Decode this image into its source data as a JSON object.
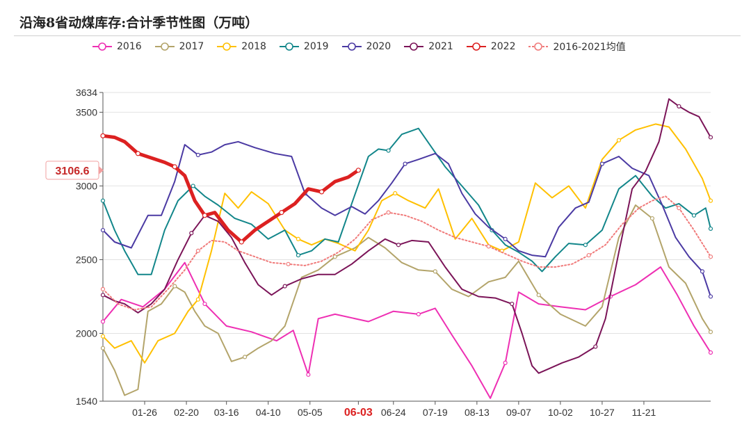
{
  "title": "沿海8省动煤库存:合计季节性图（万吨）",
  "chart_data": {
    "type": "line",
    "title": "沿海8省动煤库存:合计季节性图（万吨）",
    "xlabel": "",
    "ylabel": "",
    "ylim": [
      1540,
      3634
    ],
    "y_ticks": [
      1540,
      2000,
      2500,
      3000,
      3500,
      3634
    ],
    "x_ticks": [
      "01-26",
      "02-20",
      "03-16",
      "04-10",
      "05-05",
      "06-03",
      "06-24",
      "07-19",
      "08-13",
      "09-07",
      "10-02",
      "10-27",
      "11-21"
    ],
    "x_tick_days": [
      26,
      51,
      75,
      100,
      125,
      154,
      175,
      200,
      225,
      250,
      275,
      300,
      325
    ],
    "highlight_label": "06-03",
    "current_value_label": "3106.6",
    "current_value": 3106.6,
    "series": [
      {
        "name": "2016",
        "color": "#ee2fb3",
        "days": [
          1,
          12,
          25,
          38,
          50,
          62,
          75,
          90,
          105,
          115,
          124,
          130,
          140,
          160,
          175,
          190,
          200,
          210,
          222,
          233,
          242,
          250,
          262,
          275,
          290,
          305,
          320,
          335,
          345,
          355,
          365
        ],
        "values": [
          2080,
          2230,
          2180,
          2300,
          2480,
          2200,
          2050,
          2010,
          1950,
          2020,
          1720,
          2100,
          2130,
          2080,
          2150,
          2130,
          2170,
          1990,
          1780,
          1560,
          1800,
          2280,
          2200,
          2180,
          2160,
          2250,
          2330,
          2450,
          2260,
          2050,
          1870
        ]
      },
      {
        "name": "2017",
        "color": "#b3a46a",
        "days": [
          1,
          8,
          14,
          22,
          28,
          36,
          44,
          50,
          56,
          62,
          70,
          78,
          86,
          94,
          102,
          110,
          120,
          130,
          140,
          152,
          160,
          170,
          180,
          190,
          200,
          210,
          220,
          232,
          242,
          250,
          262,
          275,
          290,
          300,
          310,
          320,
          330,
          340,
          350,
          360,
          365
        ],
        "values": [
          1900,
          1750,
          1580,
          1620,
          2150,
          2200,
          2320,
          2280,
          2150,
          2050,
          2000,
          1810,
          1840,
          1900,
          1950,
          2050,
          2380,
          2430,
          2520,
          2580,
          2650,
          2580,
          2480,
          2430,
          2420,
          2300,
          2250,
          2350,
          2380,
          2490,
          2260,
          2130,
          2050,
          2180,
          2650,
          2870,
          2780,
          2450,
          2340,
          2100,
          2010
        ]
      },
      {
        "name": "2018",
        "color": "#ffc000",
        "days": [
          1,
          8,
          18,
          26,
          34,
          44,
          52,
          58,
          66,
          74,
          82,
          90,
          100,
          110,
          118,
          126,
          134,
          142,
          152,
          160,
          168,
          176,
          184,
          194,
          202,
          212,
          222,
          232,
          240,
          250,
          260,
          270,
          280,
          290,
          300,
          310,
          320,
          332,
          340,
          350,
          360,
          365
        ],
        "values": [
          1980,
          1900,
          1950,
          1800,
          1950,
          2000,
          2150,
          2230,
          2560,
          2950,
          2850,
          2960,
          2880,
          2700,
          2640,
          2600,
          2640,
          2610,
          2560,
          2700,
          2900,
          2950,
          2900,
          2850,
          2980,
          2640,
          2780,
          2600,
          2560,
          2620,
          3020,
          2920,
          3000,
          2850,
          3180,
          3310,
          3380,
          3420,
          3400,
          3250,
          3050,
          2900
        ]
      },
      {
        "name": "2019",
        "color": "#12868a",
        "days": [
          1,
          8,
          14,
          22,
          30,
          38,
          46,
          55,
          62,
          70,
          80,
          90,
          100,
          110,
          118,
          126,
          134,
          142,
          150,
          160,
          166,
          172,
          180,
          190,
          198,
          206,
          216,
          226,
          234,
          242,
          250,
          258,
          264,
          272,
          280,
          290,
          300,
          310,
          320,
          330,
          338,
          346,
          355,
          362,
          365
        ],
        "values": [
          2900,
          2700,
          2560,
          2400,
          2400,
          2700,
          2900,
          3000,
          2930,
          2870,
          2780,
          2740,
          2640,
          2700,
          2530,
          2560,
          2640,
          2620,
          2880,
          3200,
          3250,
          3240,
          3350,
          3390,
          3260,
          3130,
          3000,
          2870,
          2700,
          2600,
          2550,
          2490,
          2420,
          2520,
          2610,
          2600,
          2700,
          2980,
          3070,
          2930,
          2850,
          2880,
          2800,
          2850,
          2710
        ]
      },
      {
        "name": "2020",
        "color": "#4b3aa3",
        "days": [
          1,
          8,
          18,
          28,
          36,
          44,
          50,
          58,
          66,
          74,
          82,
          92,
          104,
          114,
          122,
          132,
          140,
          150,
          158,
          166,
          174,
          182,
          190,
          200,
          208,
          216,
          224,
          232,
          242,
          250,
          258,
          266,
          274,
          284,
          292,
          300,
          310,
          318,
          328,
          336,
          344,
          352,
          360,
          365
        ],
        "values": [
          2700,
          2620,
          2580,
          2800,
          2800,
          3030,
          3280,
          3210,
          3230,
          3280,
          3300,
          3260,
          3220,
          3200,
          2950,
          2850,
          2800,
          2860,
          2810,
          2900,
          3020,
          3150,
          3180,
          3220,
          3150,
          2950,
          2810,
          2720,
          2640,
          2560,
          2530,
          2520,
          2720,
          2850,
          2890,
          3150,
          3200,
          3120,
          3070,
          2870,
          2650,
          2520,
          2420,
          2250
        ]
      },
      {
        "name": "2021",
        "color": "#7b1458",
        "days": [
          1,
          8,
          14,
          22,
          30,
          38,
          46,
          54,
          62,
          70,
          78,
          86,
          94,
          102,
          110,
          120,
          130,
          140,
          150,
          160,
          170,
          178,
          186,
          196,
          206,
          216,
          226,
          236,
          246,
          252,
          258,
          262,
          268,
          276,
          286,
          296,
          302,
          310,
          318,
          326,
          334,
          340,
          346,
          352,
          358,
          365
        ],
        "values": [
          2260,
          2220,
          2200,
          2140,
          2200,
          2300,
          2500,
          2680,
          2800,
          2760,
          2650,
          2480,
          2330,
          2260,
          2320,
          2370,
          2400,
          2400,
          2470,
          2560,
          2640,
          2600,
          2630,
          2620,
          2450,
          2300,
          2250,
          2240,
          2200,
          2000,
          1780,
          1730,
          1760,
          1800,
          1840,
          1910,
          2100,
          2550,
          2980,
          3100,
          3300,
          3590,
          3540,
          3500,
          3470,
          3330
        ]
      },
      {
        "name": "2022",
        "color": "#dc2121",
        "days": [
          1,
          8,
          14,
          22,
          30,
          38,
          44,
          50,
          56,
          62,
          68,
          76,
          84,
          92,
          100,
          108,
          116,
          124,
          132,
          140,
          148,
          154
        ],
        "values": [
          3340,
          3330,
          3300,
          3220,
          3190,
          3160,
          3130,
          3070,
          2900,
          2800,
          2820,
          2700,
          2620,
          2700,
          2760,
          2820,
          2880,
          2980,
          2960,
          3030,
          3060,
          3106.6
        ],
        "bold": true
      },
      {
        "name": "2016-2021均值",
        "color": "#f07a7a",
        "days": [
          1,
          10,
          20,
          30,
          40,
          50,
          58,
          66,
          74,
          82,
          92,
          102,
          112,
          122,
          132,
          142,
          152,
          162,
          172,
          182,
          192,
          202,
          212,
          222,
          232,
          242,
          252,
          262,
          272,
          282,
          292,
          302,
          312,
          322,
          330,
          338,
          346,
          355,
          365
        ],
        "values": [
          2300,
          2200,
          2160,
          2180,
          2300,
          2430,
          2560,
          2630,
          2620,
          2560,
          2520,
          2480,
          2470,
          2460,
          2490,
          2550,
          2640,
          2770,
          2820,
          2800,
          2760,
          2700,
          2650,
          2620,
          2590,
          2540,
          2490,
          2450,
          2450,
          2470,
          2530,
          2600,
          2740,
          2850,
          2900,
          2930,
          2850,
          2700,
          2520
        ],
        "dashed": true
      }
    ]
  }
}
